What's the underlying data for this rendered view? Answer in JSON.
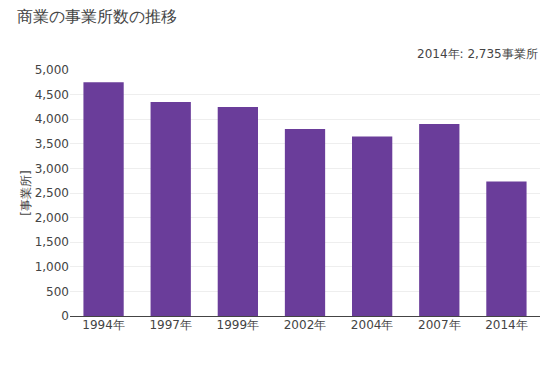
{
  "chart_data": {
    "type": "bar",
    "title": "商業の事業所数の推移",
    "ylabel": "[事業所]",
    "annotation": "2014年: 2,735事業所",
    "categories": [
      "1994年",
      "1997年",
      "1999年",
      "2002年",
      "2004年",
      "2007年",
      "2014年"
    ],
    "values": [
      4750,
      4350,
      4250,
      3800,
      3650,
      3900,
      2735
    ],
    "color": "#6A3D9A",
    "ylim": [
      0,
      5000
    ],
    "yticks": [
      0,
      500,
      {
        "value": 1000,
        "label": "1,000"
      },
      {
        "value": 1500,
        "label": "1,500"
      },
      {
        "value": 2000,
        "label": "2,000"
      },
      {
        "value": 2500,
        "label": "2,500"
      },
      {
        "value": 3000,
        "label": "3,000"
      },
      {
        "value": 3500,
        "label": "3,500"
      },
      {
        "value": 4000,
        "label": "4,000"
      },
      {
        "value": 4500,
        "label": "4,500"
      },
      {
        "value": 5000,
        "label": "5,000"
      }
    ],
    "grid": true
  }
}
